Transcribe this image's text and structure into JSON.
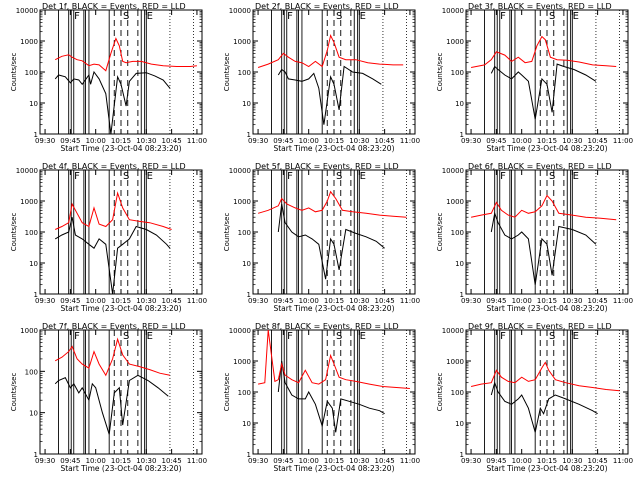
{
  "chart_data": {
    "type": "line",
    "common": {
      "xlabel": "Start Time (23-Oct-04 08:23:20)",
      "ylabel": "Counts/sec",
      "xticks": [
        "09:30",
        "09:45",
        "10:00",
        "10:15",
        "10:30",
        "10:45",
        "11:00"
      ],
      "xlim": [
        "09:27",
        "11:03"
      ],
      "yscale": "log",
      "flare_letters": [
        "F",
        "S",
        "E"
      ],
      "series_colors": {
        "Events": "#000000",
        "LLD": "#ff0000"
      }
    },
    "panels": [
      {
        "title": "Det 1f, BLACK = Events, RED = LLD",
        "ylim": [
          1,
          10000
        ],
        "yticks": [
          "1",
          "10",
          "100",
          "1000",
          "10000"
        ],
        "series": [
          {
            "name": "Events",
            "color": "#000000",
            "x": [
              "09:36",
              "09:38",
              "09:42",
              "09:45",
              "09:47",
              "09:50",
              "09:52",
              "09:56",
              "09:57",
              "09:59",
              "10:02",
              "10:06",
              "10:09",
              "10:13",
              "10:15",
              "10:18",
              "10:20",
              "10:24",
              "10:30",
              "10:35",
              "10:40",
              "10:44"
            ],
            "values": [
              60,
              80,
              70,
              45,
              60,
              55,
              40,
              80,
              40,
              100,
              60,
              20,
              1,
              70,
              40,
              8,
              50,
              90,
              95,
              75,
              55,
              30
            ]
          },
          {
            "name": "LLD",
            "color": "#ff0000",
            "x": [
              "09:36",
              "09:40",
              "09:44",
              "09:46",
              "09:49",
              "09:52",
              "09:56",
              "09:59",
              "10:02",
              "10:06",
              "10:09",
              "10:12",
              "10:14",
              "10:16",
              "10:18",
              "10:22",
              "10:27",
              "10:33",
              "10:40",
              "10:48",
              "10:56",
              "11:00"
            ],
            "values": [
              250,
              320,
              360,
              300,
              250,
              230,
              160,
              180,
              170,
              110,
              400,
              1200,
              700,
              220,
              200,
              220,
              220,
              180,
              160,
              150,
              150,
              160
            ]
          }
        ]
      },
      {
        "title": "Det 2f, BLACK = Events, RED = LLD",
        "ylim": [
          1,
          10000
        ],
        "yticks": [
          "1",
          "10",
          "100",
          "1000",
          "10000"
        ],
        "series": [
          {
            "name": "Events",
            "color": "#000000",
            "x": [
              "09:42",
              "09:44",
              "09:46",
              "09:48",
              "09:52",
              "09:56",
              "10:00",
              "10:03",
              "10:06",
              "10:09",
              "10:13",
              "10:15",
              "10:18",
              "10:21",
              "10:26",
              "10:32",
              "10:38",
              "10:43"
            ],
            "values": [
              80,
              120,
              100,
              60,
              55,
              50,
              60,
              90,
              30,
              2,
              70,
              40,
              6,
              150,
              100,
              90,
              60,
              40
            ]
          },
          {
            "name": "LLD",
            "color": "#ff0000",
            "x": [
              "09:30",
              "09:36",
              "09:42",
              "09:45",
              "09:48",
              "09:52",
              "09:56",
              "10:00",
              "10:04",
              "10:08",
              "10:11",
              "10:13",
              "10:15",
              "10:18",
              "10:22",
              "10:28",
              "10:35",
              "10:42",
              "10:50",
              "10:56"
            ],
            "values": [
              140,
              180,
              250,
              400,
              300,
              220,
              200,
              150,
              220,
              150,
              500,
              1500,
              900,
              300,
              250,
              250,
              200,
              180,
              170,
              170
            ]
          }
        ]
      },
      {
        "title": "Det 3f, BLACK = Events, RED = LLD",
        "ylim": [
          1,
          10000
        ],
        "yticks": [
          "1",
          "10",
          "100",
          "1000",
          "10000"
        ],
        "series": [
          {
            "name": "Events",
            "color": "#000000",
            "x": [
              "09:42",
              "09:44",
              "09:46",
              "09:50",
              "09:54",
              "09:58",
              "10:00",
              "10:04",
              "10:08",
              "10:12",
              "10:15",
              "10:18",
              "10:21",
              "10:25",
              "10:31",
              "10:38",
              "10:44"
            ],
            "values": [
              90,
              150,
              120,
              80,
              60,
              100,
              80,
              50,
              3,
              60,
              40,
              5,
              180,
              150,
              120,
              80,
              50
            ]
          },
          {
            "name": "LLD",
            "color": "#ff0000",
            "x": [
              "09:30",
              "09:38",
              "09:42",
              "09:45",
              "09:50",
              "09:54",
              "09:58",
              "10:02",
              "10:06",
              "10:09",
              "10:12",
              "10:14",
              "10:17",
              "10:21",
              "10:27",
              "10:34",
              "10:42",
              "10:50",
              "10:56"
            ],
            "values": [
              140,
              170,
              250,
              450,
              350,
              220,
              300,
              200,
              220,
              700,
              1400,
              1100,
              300,
              250,
              240,
              210,
              170,
              160,
              150
            ]
          }
        ]
      },
      {
        "title": "Det 4f, BLACK = Events, RED = LLD",
        "ylim": [
          1,
          10000
        ],
        "yticks": [
          "1",
          "10",
          "100",
          "1000",
          "10000"
        ],
        "series": [
          {
            "name": "Events",
            "color": "#000000",
            "x": [
              "09:36",
              "09:40",
              "09:44",
              "09:46",
              "09:48",
              "09:52",
              "09:56",
              "09:59",
              "10:02",
              "10:06",
              "10:10",
              "10:13",
              "10:16",
              "10:20",
              "10:24",
              "10:30",
              "10:36",
              "10:42",
              "10:44"
            ],
            "values": [
              60,
              80,
              100,
              300,
              80,
              60,
              40,
              30,
              60,
              40,
              1,
              30,
              40,
              60,
              150,
              120,
              80,
              40,
              30
            ]
          },
          {
            "name": "LLD",
            "color": "#ff0000",
            "x": [
              "09:36",
              "09:40",
              "09:44",
              "09:46",
              "09:49",
              "09:52",
              "09:56",
              "09:59",
              "10:02",
              "10:06",
              "10:10",
              "10:13",
              "10:16",
              "10:20",
              "10:26",
              "10:32",
              "10:40",
              "10:45"
            ],
            "values": [
              120,
              150,
              200,
              800,
              400,
              200,
              150,
              600,
              180,
              150,
              250,
              1800,
              600,
              250,
              220,
              200,
              150,
              120
            ]
          }
        ]
      },
      {
        "title": "Det 5f, BLACK = Events, RED = LLD",
        "ylim": [
          1,
          10000
        ],
        "yticks": [
          "1",
          "10",
          "100",
          "1000",
          "10000"
        ],
        "series": [
          {
            "name": "Events",
            "color": "#000000",
            "x": [
              "09:42",
              "09:44",
              "09:46",
              "09:50",
              "09:54",
              "09:58",
              "10:02",
              "10:06",
              "10:10",
              "10:13",
              "10:15",
              "10:18",
              "10:22",
              "10:28",
              "10:34",
              "10:40",
              "10:45"
            ],
            "values": [
              100,
              800,
              200,
              100,
              70,
              80,
              60,
              40,
              3,
              60,
              40,
              6,
              120,
              90,
              70,
              50,
              30
            ]
          },
          {
            "name": "LLD",
            "color": "#ff0000",
            "x": [
              "09:30",
              "09:36",
              "09:42",
              "09:44",
              "09:47",
              "09:52",
              "09:56",
              "10:00",
              "10:04",
              "10:08",
              "10:11",
              "10:13",
              "10:16",
              "10:20",
              "10:26",
              "10:34",
              "10:42",
              "10:50",
              "10:58"
            ],
            "values": [
              400,
              500,
              700,
              1200,
              800,
              600,
              500,
              600,
              450,
              500,
              1000,
              2000,
              1200,
              500,
              450,
              400,
              350,
              320,
              300
            ]
          }
        ]
      },
      {
        "title": "Det 6f, BLACK = Events, RED = LLD",
        "ylim": [
          1,
          10000
        ],
        "yticks": [
          "1",
          "10",
          "100",
          "1000",
          "10000"
        ],
        "series": [
          {
            "name": "Events",
            "color": "#000000",
            "x": [
              "09:42",
              "09:44",
              "09:46",
              "09:50",
              "09:54",
              "09:58",
              "10:00",
              "10:04",
              "10:08",
              "10:12",
              "10:15",
              "10:18",
              "10:22",
              "10:30",
              "10:38",
              "10:44"
            ],
            "values": [
              100,
              400,
              200,
              80,
              60,
              80,
              100,
              60,
              2,
              60,
              40,
              4,
              150,
              120,
              80,
              40
            ]
          },
          {
            "name": "LLD",
            "color": "#ff0000",
            "x": [
              "09:30",
              "09:36",
              "09:42",
              "09:45",
              "09:48",
              "09:52",
              "09:56",
              "10:00",
              "10:04",
              "10:08",
              "10:12",
              "10:15",
              "10:18",
              "10:22",
              "10:30",
              "10:38",
              "10:46",
              "10:56"
            ],
            "values": [
              300,
              350,
              400,
              900,
              500,
              350,
              300,
              500,
              400,
              450,
              700,
              1500,
              1000,
              400,
              350,
              300,
              280,
              250
            ]
          }
        ]
      },
      {
        "title": "Det 7f, BLACK = Events, RED = LLD",
        "ylim": [
          1,
          1000
        ],
        "yticks": [
          "1",
          "10",
          "100",
          "1000"
        ],
        "series": [
          {
            "name": "Events",
            "color": "#000000",
            "x": [
              "09:36",
              "09:38",
              "09:42",
              "09:45",
              "09:47",
              "09:50",
              "09:52",
              "09:56",
              "09:58",
              "10:00",
              "10:04",
              "10:08",
              "10:11",
              "10:14",
              "10:16",
              "10:20",
              "10:25",
              "10:31",
              "10:37",
              "10:43"
            ],
            "values": [
              50,
              60,
              70,
              40,
              50,
              30,
              40,
              20,
              50,
              40,
              10,
              3,
              30,
              40,
              5,
              60,
              80,
              60,
              40,
              25
            ]
          },
          {
            "name": "LLD",
            "color": "#ff0000",
            "x": [
              "09:36",
              "09:40",
              "09:44",
              "09:46",
              "09:49",
              "09:52",
              "09:56",
              "09:59",
              "10:02",
              "10:06",
              "10:10",
              "10:13",
              "10:16",
              "10:20",
              "10:26",
              "10:32",
              "10:38",
              "10:44"
            ],
            "values": [
              180,
              220,
              300,
              400,
              200,
              150,
              120,
              300,
              150,
              80,
              200,
              600,
              250,
              150,
              130,
              110,
              90,
              80
            ]
          }
        ]
      },
      {
        "title": "Det 8f, BLACK = Events, RED = LLD",
        "ylim": [
          1,
          10000
        ],
        "yticks": [
          "1",
          "10",
          "100",
          "1000",
          "10000"
        ],
        "series": [
          {
            "name": "Events",
            "color": "#000000",
            "x": [
              "09:42",
              "09:44",
              "09:46",
              "09:50",
              "09:54",
              "09:58",
              "10:00",
              "10:04",
              "10:08",
              "10:11",
              "10:14",
              "10:16",
              "10:19",
              "10:24",
              "10:30",
              "10:36",
              "10:42",
              "10:45"
            ],
            "values": [
              100,
              1000,
              200,
              80,
              60,
              60,
              100,
              40,
              8,
              50,
              30,
              5,
              60,
              50,
              40,
              30,
              25,
              20
            ]
          },
          {
            "name": "LLD",
            "color": "#ff0000",
            "x": [
              "09:30",
              "09:34",
              "09:36",
              "09:40",
              "09:42",
              "09:44",
              "09:46",
              "09:50",
              "09:54",
              "09:58",
              "10:02",
              "10:06",
              "10:10",
              "10:13",
              "10:15",
              "10:18",
              "10:22",
              "10:28",
              "10:36",
              "10:44",
              "10:52",
              "11:00"
            ],
            "values": [
              180,
              200,
              10000,
              220,
              250,
              800,
              350,
              250,
              200,
              500,
              200,
              180,
              250,
              1500,
              800,
              300,
              250,
              220,
              180,
              150,
              140,
              130
            ]
          }
        ]
      },
      {
        "title": "Det 9f, BLACK = Events, RED = LLD",
        "ylim": [
          1,
          10000
        ],
        "yticks": [
          "1",
          "10",
          "100",
          "1000",
          "10000"
        ],
        "series": [
          {
            "name": "Events",
            "color": "#000000",
            "x": [
              "09:42",
              "09:44",
              "09:46",
              "09:50",
              "09:54",
              "09:58",
              "10:00",
              "10:04",
              "10:08",
              "10:11",
              "10:13",
              "10:16",
              "10:20",
              "10:26",
              "10:34",
              "10:42",
              "10:45"
            ],
            "values": [
              80,
              200,
              100,
              50,
              40,
              60,
              80,
              30,
              5,
              30,
              20,
              60,
              80,
              60,
              40,
              25,
              20
            ]
          },
          {
            "name": "LLD",
            "color": "#ff0000",
            "x": [
              "09:30",
              "09:36",
              "09:42",
              "09:45",
              "09:48",
              "09:52",
              "09:56",
              "10:00",
              "10:04",
              "10:08",
              "10:12",
              "10:14",
              "10:16",
              "10:20",
              "10:26",
              "10:34",
              "10:42",
              "10:50",
              "10:58"
            ],
            "values": [
              150,
              180,
              200,
              500,
              300,
              220,
              200,
              300,
              220,
              250,
              600,
              900,
              500,
              250,
              200,
              160,
              140,
              120,
              110
            ]
          }
        ]
      }
    ]
  }
}
